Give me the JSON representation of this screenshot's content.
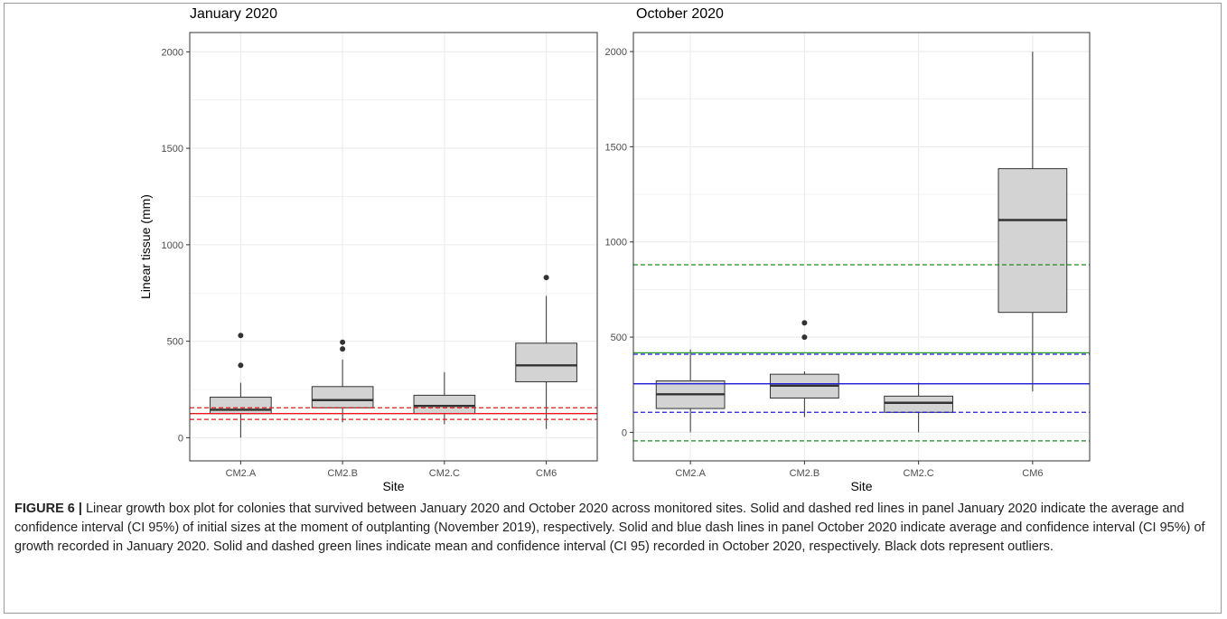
{
  "chart_data": [
    {
      "type": "box",
      "title": "January 2020",
      "xlabel": "Site",
      "ylabel": "Linear tissue (mm)",
      "categories": [
        "CM2.A",
        "CM2.B",
        "CM2.C",
        "CM6"
      ],
      "ylim": [
        -120,
        2100
      ],
      "yticks": [
        0,
        500,
        1000,
        1500,
        2000
      ],
      "grid": true,
      "boxes": [
        {
          "category": "CM2.A",
          "whisker_low": 0,
          "q1": 125,
          "median": 145,
          "q3": 210,
          "whisker_high": 285,
          "outliers": [
            375,
            530
          ]
        },
        {
          "category": "CM2.B",
          "whisker_low": 80,
          "q1": 155,
          "median": 195,
          "q3": 265,
          "whisker_high": 405,
          "outliers": [
            460,
            495
          ]
        },
        {
          "category": "CM2.C",
          "whisker_low": 70,
          "q1": 125,
          "median": 165,
          "q3": 220,
          "whisker_high": 340,
          "outliers": []
        },
        {
          "category": "CM6",
          "whisker_low": 45,
          "q1": 290,
          "median": 375,
          "q3": 490,
          "whisker_high": 735,
          "outliers": [
            830
          ]
        }
      ],
      "reference_lines": [
        {
          "y": 125,
          "style": "solid",
          "color": "#e41a1c"
        },
        {
          "y": 155,
          "style": "dashed",
          "color": "#e41a1c"
        },
        {
          "y": 95,
          "style": "dashed",
          "color": "#e41a1c"
        }
      ]
    },
    {
      "type": "box",
      "title": "October 2020",
      "xlabel": "Site",
      "ylabel": "",
      "categories": [
        "CM2.A",
        "CM2.B",
        "CM2.C",
        "CM6"
      ],
      "ylim": [
        -150,
        2100
      ],
      "yticks": [
        0,
        500,
        1000,
        1500,
        2000
      ],
      "grid": true,
      "boxes": [
        {
          "category": "CM2.A",
          "whisker_low": 0,
          "q1": 125,
          "median": 200,
          "q3": 270,
          "whisker_high": 435,
          "outliers": []
        },
        {
          "category": "CM2.B",
          "whisker_low": 80,
          "q1": 180,
          "median": 245,
          "q3": 305,
          "whisker_high": 320,
          "outliers": [
            500,
            575
          ]
        },
        {
          "category": "CM2.C",
          "whisker_low": 0,
          "q1": 105,
          "median": 155,
          "q3": 190,
          "whisker_high": 260,
          "outliers": []
        },
        {
          "category": "CM6",
          "whisker_low": 215,
          "q1": 630,
          "median": 1115,
          "q3": 1385,
          "whisker_high": 2000,
          "outliers": []
        }
      ],
      "reference_lines": [
        {
          "y": 418,
          "style": "solid",
          "color": "#2ca02c"
        },
        {
          "y": 880,
          "style": "dashed",
          "color": "#1e8a1e"
        },
        {
          "y": -45,
          "style": "dashed",
          "color": "#1e8a1e"
        },
        {
          "y": 255,
          "style": "solid",
          "color": "#1f1fd6"
        },
        {
          "y": 410,
          "style": "dashed",
          "color": "#1f1fd6"
        },
        {
          "y": 105,
          "style": "dashed",
          "color": "#1f1fd6"
        }
      ]
    }
  ],
  "caption": {
    "label": "FIGURE 6 |",
    "text": " Linear growth box plot for colonies that survived between January 2020 and October 2020 across monitored sites. Solid and dashed red lines in panel January 2020 indicate the average and confidence interval (CI 95%) of initial sizes at the moment of outplanting (November 2019), respectively. Solid and blue dash lines in panel October 2020 indicate average and confidence interval (CI 95%) of growth recorded in January 2020. Solid and dashed green lines indicate mean and confidence interval (CI 95) recorded in October 2020, respectively. Black dots represent outliers."
  },
  "colors": {
    "box_fill": "#d3d3d3",
    "box_stroke": "#333333",
    "median": "#333333",
    "grid": "#ebebeb",
    "outlier": "#333333"
  }
}
